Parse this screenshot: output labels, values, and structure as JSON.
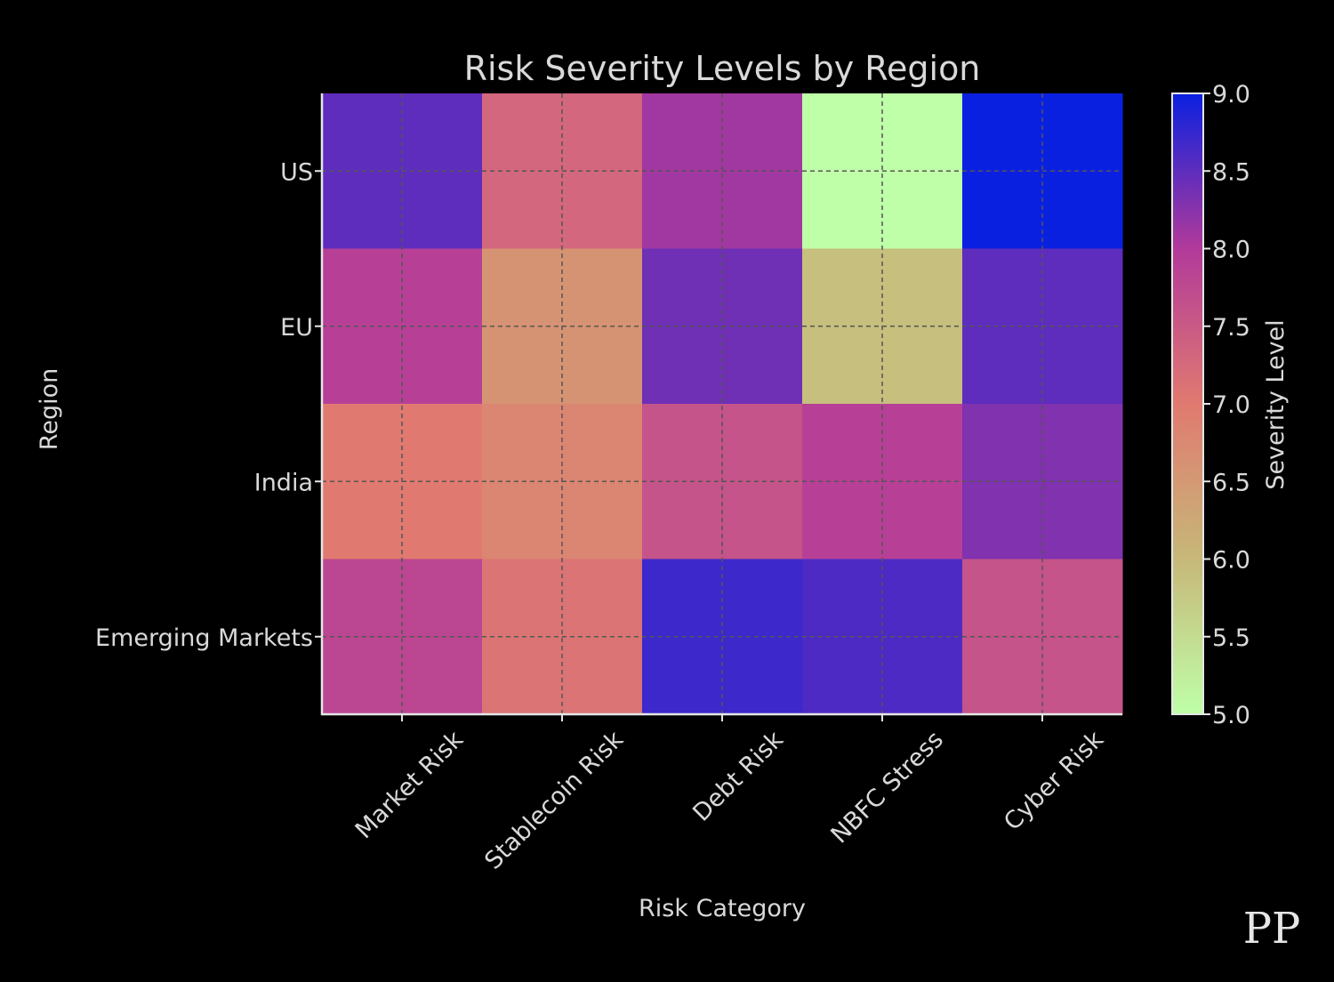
{
  "chart_data": {
    "type": "heatmap",
    "title": "Risk Severity Levels by Region",
    "xlabel": "Risk Category",
    "ylabel": "Region",
    "x_categories": [
      "Market Risk",
      "Stablecoin Risk",
      "Debt Risk",
      "NBFC Stress",
      "Cyber Risk"
    ],
    "y_categories": [
      "US",
      "EU",
      "India",
      "Emerging Markets"
    ],
    "values": [
      [
        8.5,
        7.3,
        8.1,
        5.0,
        9.0
      ],
      [
        7.9,
        6.6,
        8.4,
        5.9,
        8.5
      ],
      [
        7.0,
        6.8,
        7.6,
        7.9,
        8.3
      ],
      [
        7.8,
        7.1,
        8.7,
        8.6,
        7.6
      ]
    ],
    "colorbar": {
      "label": "Severity Level",
      "range": [
        5.0,
        9.0
      ],
      "ticks": [
        "5.0",
        "5.5",
        "6.0",
        "6.5",
        "7.0",
        "7.5",
        "8.0",
        "8.5",
        "9.0"
      ],
      "colors": [
        "#bfffa8",
        "#c7b878",
        "#e07a70",
        "#b23a9a",
        "#0a20e0"
      ]
    },
    "grid": true
  },
  "watermark": "PP"
}
